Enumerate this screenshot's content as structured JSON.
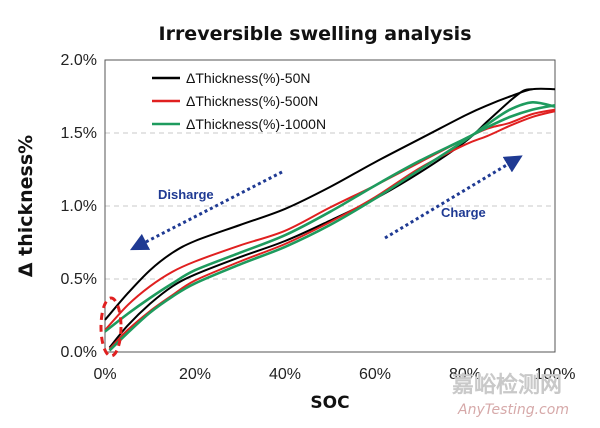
{
  "chart_data": {
    "type": "line",
    "title": "Irreversible swelling analysis",
    "xlabel": "SOC",
    "ylabel": "Δ thickness%",
    "xlim": [
      0,
      100
    ],
    "ylim": [
      0,
      2.0
    ],
    "x_ticks": [
      "0%",
      "20%",
      "40%",
      "60%",
      "80%",
      "100%"
    ],
    "y_ticks": [
      "0.0%",
      "0.5%",
      "1.0%",
      "1.5%",
      "2.0%"
    ],
    "grid": "horizontal dashed",
    "legend_position": "top-left",
    "series": [
      {
        "name": "ΔThickness(%)-50N",
        "color": "#000000",
        "charge": [
          [
            1,
            0.03
          ],
          [
            5,
            0.18
          ],
          [
            10,
            0.33
          ],
          [
            15,
            0.45
          ],
          [
            20,
            0.53
          ],
          [
            30,
            0.65
          ],
          [
            40,
            0.76
          ],
          [
            50,
            0.9
          ],
          [
            60,
            1.05
          ],
          [
            70,
            1.23
          ],
          [
            80,
            1.44
          ],
          [
            85,
            1.58
          ],
          [
            90,
            1.72
          ],
          [
            93,
            1.79
          ],
          [
            95,
            1.8
          ]
        ],
        "discharge": [
          [
            100,
            1.8
          ],
          [
            95,
            1.8
          ],
          [
            90,
            1.75
          ],
          [
            85,
            1.69
          ],
          [
            80,
            1.62
          ],
          [
            70,
            1.46
          ],
          [
            60,
            1.3
          ],
          [
            50,
            1.13
          ],
          [
            40,
            0.98
          ],
          [
            30,
            0.87
          ],
          [
            20,
            0.76
          ],
          [
            15,
            0.68
          ],
          [
            10,
            0.56
          ],
          [
            5,
            0.4
          ],
          [
            0,
            0.22
          ]
        ]
      },
      {
        "name": "ΔThickness(%)-500N",
        "color": "#e02020",
        "charge": [
          [
            1,
            0.02
          ],
          [
            5,
            0.15
          ],
          [
            10,
            0.28
          ],
          [
            15,
            0.39
          ],
          [
            20,
            0.49
          ],
          [
            30,
            0.62
          ],
          [
            40,
            0.74
          ],
          [
            50,
            0.89
          ],
          [
            60,
            1.06
          ],
          [
            70,
            1.26
          ],
          [
            80,
            1.42
          ],
          [
            85,
            1.48
          ],
          [
            90,
            1.55
          ],
          [
            95,
            1.61
          ],
          [
            100,
            1.65
          ]
        ],
        "discharge": [
          [
            100,
            1.66
          ],
          [
            95,
            1.63
          ],
          [
            90,
            1.57
          ],
          [
            85,
            1.53
          ],
          [
            80,
            1.46
          ],
          [
            70,
            1.3
          ],
          [
            60,
            1.14
          ],
          [
            50,
            0.99
          ],
          [
            40,
            0.83
          ],
          [
            30,
            0.73
          ],
          [
            20,
            0.62
          ],
          [
            15,
            0.55
          ],
          [
            10,
            0.45
          ],
          [
            5,
            0.32
          ],
          [
            0,
            0.15
          ]
        ]
      },
      {
        "name": "ΔThickness(%)-1000N",
        "color": "#1e9b5e",
        "charge": [
          [
            1,
            0.01
          ],
          [
            5,
            0.13
          ],
          [
            10,
            0.27
          ],
          [
            15,
            0.38
          ],
          [
            20,
            0.47
          ],
          [
            30,
            0.6
          ],
          [
            40,
            0.72
          ],
          [
            50,
            0.87
          ],
          [
            60,
            1.05
          ],
          [
            70,
            1.25
          ],
          [
            80,
            1.45
          ],
          [
            85,
            1.56
          ],
          [
            90,
            1.66
          ],
          [
            95,
            1.71
          ],
          [
            100,
            1.68
          ]
        ],
        "discharge": [
          [
            100,
            1.69
          ],
          [
            95,
            1.66
          ],
          [
            90,
            1.61
          ],
          [
            85,
            1.54
          ],
          [
            80,
            1.46
          ],
          [
            70,
            1.31
          ],
          [
            60,
            1.14
          ],
          [
            50,
            0.96
          ],
          [
            40,
            0.8
          ],
          [
            30,
            0.68
          ],
          [
            20,
            0.56
          ],
          [
            15,
            0.47
          ],
          [
            10,
            0.37
          ],
          [
            5,
            0.26
          ],
          [
            0,
            0.14
          ]
        ]
      }
    ],
    "annotations": [
      {
        "text": "Disharge",
        "color": "#1f3a93"
      },
      {
        "text": "Charge",
        "color": "#1f3a93"
      }
    ]
  },
  "watermark": {
    "cn": "嘉峪检测网",
    "en": "AnyTesting.com"
  }
}
